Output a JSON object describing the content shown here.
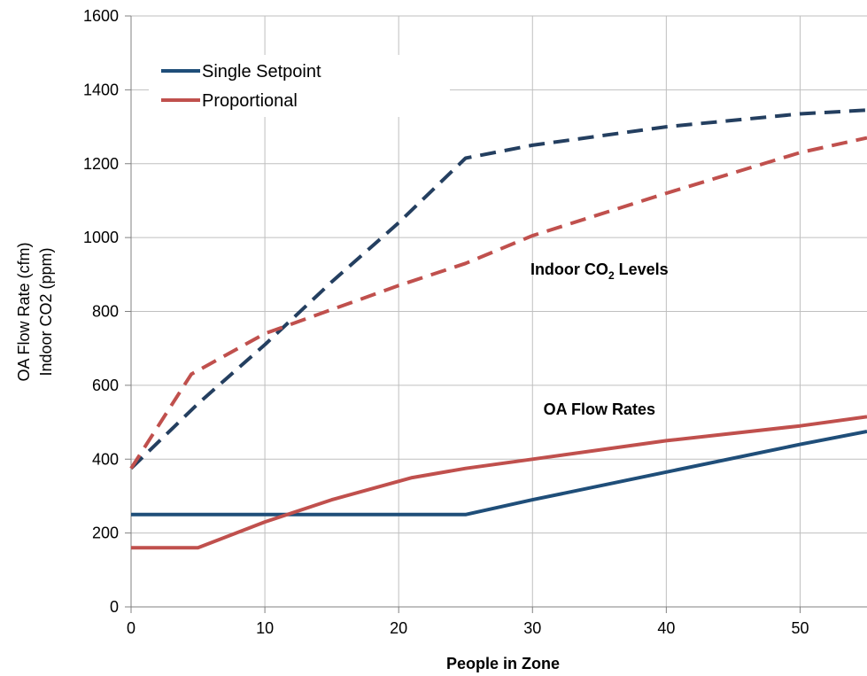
{
  "chart_data": {
    "type": "line",
    "xlabel": "People in Zone",
    "ylabel_lines": [
      "OA Flow Rate (cfm)",
      "Indoor CO2 (ppm)"
    ],
    "xlim": [
      0,
      55
    ],
    "ylim": [
      0,
      1600
    ],
    "x_ticks": [
      0,
      10,
      20,
      30,
      40,
      50
    ],
    "y_ticks": [
      0,
      200,
      400,
      600,
      800,
      1000,
      1200,
      1400,
      1600
    ],
    "grid": true,
    "legend": {
      "placement": "top-left",
      "entries": [
        {
          "name": "Single Setpoint",
          "color": "#1f4e79"
        },
        {
          "name": "Proportional",
          "color": "#c0504d"
        }
      ]
    },
    "annotations": [
      {
        "id": "co2",
        "text": "Indoor CO",
        "sub": "2",
        "suffix": " Levels",
        "x": 35,
        "y": 900
      },
      {
        "id": "oa",
        "text": "OA Flow Rates",
        "x": 35,
        "y": 520
      }
    ],
    "series": [
      {
        "name": "Single Setpoint",
        "group": "OA Flow Rates",
        "color": "#1f4e79",
        "dash": false,
        "points": [
          [
            0,
            250
          ],
          [
            5,
            250
          ],
          [
            10,
            250
          ],
          [
            15,
            250
          ],
          [
            20,
            250
          ],
          [
            25,
            250
          ],
          [
            30,
            290
          ],
          [
            40,
            365
          ],
          [
            50,
            440
          ],
          [
            55,
            475
          ]
        ]
      },
      {
        "name": "Proportional",
        "group": "OA Flow Rates",
        "color": "#c0504d",
        "dash": false,
        "points": [
          [
            0,
            160
          ],
          [
            5,
            160
          ],
          [
            10,
            230
          ],
          [
            15,
            290
          ],
          [
            21,
            350
          ],
          [
            25,
            375
          ],
          [
            30,
            400
          ],
          [
            40,
            450
          ],
          [
            50,
            490
          ],
          [
            55,
            515
          ]
        ]
      },
      {
        "name": "Single Setpoint",
        "group": "Indoor CO2 Levels",
        "color": "#243f60",
        "dash": true,
        "points": [
          [
            0,
            375
          ],
          [
            5,
            550
          ],
          [
            10,
            710
          ],
          [
            15,
            880
          ],
          [
            20,
            1040
          ],
          [
            25,
            1215
          ],
          [
            30,
            1250
          ],
          [
            40,
            1300
          ],
          [
            50,
            1335
          ],
          [
            55,
            1345
          ]
        ]
      },
      {
        "name": "Proportional",
        "group": "Indoor CO2 Levels",
        "color": "#c0504d",
        "dash": true,
        "points": [
          [
            0,
            375
          ],
          [
            4.5,
            630
          ],
          [
            10,
            740
          ],
          [
            20,
            870
          ],
          [
            25,
            930
          ],
          [
            30,
            1005
          ],
          [
            40,
            1120
          ],
          [
            50,
            1230
          ],
          [
            55,
            1270
          ]
        ]
      }
    ]
  }
}
